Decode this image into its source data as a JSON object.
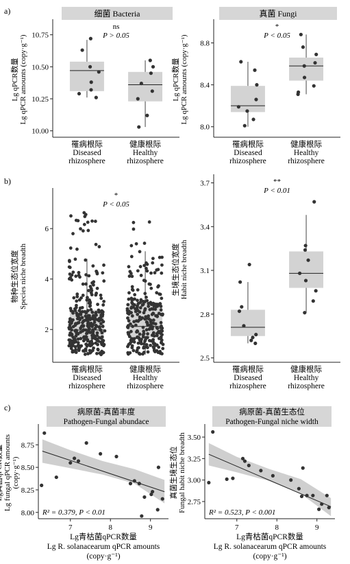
{
  "panel_labels": [
    "a)",
    "b)",
    "c)"
  ],
  "chart_data": [
    {
      "id": "a1",
      "type": "box",
      "title": "细菌 Bacteria",
      "ylabel": [
        "Lg qPCR数量",
        "Lg qPCR amounts (copy·g⁻¹)"
      ],
      "ylim": [
        9.95,
        10.85
      ],
      "yticks": [
        "10.00",
        "10.25",
        "10.50",
        "10.75"
      ],
      "ytick_values": [
        10.0,
        10.25,
        10.5,
        10.75
      ],
      "categories": [
        [
          "罹病根际",
          "Diseased",
          "rhizosphere"
        ],
        [
          "健康根际",
          "Healthy",
          "rhizosphere"
        ]
      ],
      "annotation": [
        "ns",
        "P > 0.05"
      ],
      "boxes": [
        {
          "q1": 10.31,
          "median": 10.47,
          "q3": 10.54,
          "wlow": 10.26,
          "whigh": 10.71,
          "points": [
            10.72,
            10.63,
            10.5,
            10.46,
            10.38,
            10.32,
            10.29,
            10.26
          ]
        },
        {
          "q1": 10.23,
          "median": 10.36,
          "q3": 10.46,
          "wlow": 10.03,
          "whigh": 10.55,
          "points": [
            10.55,
            10.5,
            10.45,
            10.37,
            10.31,
            10.25,
            10.12,
            10.03
          ]
        }
      ]
    },
    {
      "id": "a2",
      "type": "box",
      "title": "真菌 Fungi",
      "ylabel": [
        "Lg qPCR数量",
        "Lg qPCR amounts (copy·g⁻¹)"
      ],
      "ylim": [
        7.9,
        9.0
      ],
      "yticks": [
        "8.0",
        "8.4",
        "8.8"
      ],
      "ytick_values": [
        8.0,
        8.4,
        8.8
      ],
      "categories": [
        [
          "罹病根际",
          "Diseased",
          "rhizosphere"
        ],
        [
          "健康根际",
          "Healthy",
          "rhizosphere"
        ]
      ],
      "annotation": [
        "*",
        "P < 0.05"
      ],
      "boxes": [
        {
          "q1": 8.14,
          "median": 8.2,
          "q3": 8.39,
          "wlow": 8.0,
          "whigh": 8.62,
          "points": [
            8.62,
            8.54,
            8.4,
            8.26,
            8.19,
            8.15,
            8.07,
            8.01
          ]
        },
        {
          "q1": 8.44,
          "median": 8.58,
          "q3": 8.66,
          "wlow": 8.31,
          "whigh": 8.88,
          "points": [
            8.88,
            8.76,
            8.69,
            8.61,
            8.58,
            8.47,
            8.39,
            8.33,
            8.31
          ]
        }
      ]
    },
    {
      "id": "b1",
      "type": "box",
      "ylabel": [
        "物种生态位宽度",
        "Species niche breadth"
      ],
      "ylim": [
        0.7,
        7.5
      ],
      "yticks": [
        "2",
        "4",
        "6"
      ],
      "ytick_values": [
        2,
        4,
        6
      ],
      "categories": [
        [
          "罹病根际",
          "Diseased",
          "rhizosphere"
        ],
        [
          "健康根际",
          "Healthy",
          "rhizosphere"
        ]
      ],
      "annotation": [
        "*",
        "P < 0.05"
      ],
      "boxes": [
        {
          "q1": 1.6,
          "median": 1.98,
          "q3": 2.78,
          "wlow": 1.0,
          "whigh": 4.8,
          "n": 330,
          "max": 6.7
        },
        {
          "q1": 1.68,
          "median": 2.12,
          "q3": 3.05,
          "wlow": 1.0,
          "whigh": 5.1,
          "n": 270,
          "max": 6.3
        }
      ]
    },
    {
      "id": "b2",
      "type": "box",
      "ylabel": [
        "生境生态位宽度",
        "Habit niche breadth"
      ],
      "ylim": [
        2.47,
        3.74
      ],
      "yticks": [
        "2.5",
        "2.8",
        "3.1",
        "3.4",
        "3.7"
      ],
      "ytick_values": [
        2.5,
        2.8,
        3.1,
        3.4,
        3.7
      ],
      "categories": [
        [
          "罹病根际",
          "Diseased",
          "rhizosphere"
        ],
        [
          "健康根际",
          "Healthy",
          "rhizosphere"
        ]
      ],
      "annotation": [
        "**",
        "P < 0.01"
      ],
      "boxes": [
        {
          "q1": 2.65,
          "median": 2.71,
          "q3": 2.83,
          "wlow": 2.6,
          "whigh": 3.02,
          "points": [
            3.14,
            3.02,
            2.85,
            2.82,
            2.72,
            2.66,
            2.64,
            2.62,
            2.6
          ]
        },
        {
          "q1": 2.98,
          "median": 3.08,
          "q3": 3.23,
          "wlow": 2.81,
          "whigh": 3.48,
          "points": [
            3.57,
            3.27,
            3.24,
            3.17,
            3.08,
            3.03,
            2.96,
            2.89,
            2.81
          ]
        }
      ]
    },
    {
      "id": "c1",
      "type": "scatter",
      "title": [
        "病原菌-真菌丰度",
        "Pathogen-Fungal abundace"
      ],
      "ylabel": [
        "Lg真菌qPCR数量",
        "Lg fungal qPCR amounts",
        "(copy·g⁻¹)"
      ],
      "xlabel": [
        "Lg青枯菌qPCR数量",
        "Lg R. solanacearum qPCR amounts",
        "(copy·g⁻¹)"
      ],
      "xlim": [
        6.2,
        9.45
      ],
      "ylim": [
        7.93,
        8.95
      ],
      "xticks": [
        "7",
        "8",
        "9"
      ],
      "xtick_values": [
        7,
        8,
        9
      ],
      "yticks": [
        "8.00",
        "8.25",
        "8.50",
        "8.75"
      ],
      "ytick_values": [
        8.0,
        8.25,
        8.5,
        8.75
      ],
      "annotation": "R² = 0.379, P < 0.01",
      "x": [
        6.35,
        6.28,
        6.65,
        7.0,
        7.1,
        7.4,
        7.2,
        7.75,
        8.15,
        8.5,
        8.6,
        8.72,
        8.85,
        9.02,
        8.78,
        9.18,
        9.3,
        9.05,
        9.2
      ],
      "y": [
        8.88,
        8.3,
        8.39,
        8.55,
        8.6,
        8.77,
        8.57,
        8.65,
        8.62,
        8.32,
        8.35,
        8.32,
        8.17,
        8.2,
        7.96,
        8.03,
        8.15,
        8.23,
        8.5
      ],
      "fit": {
        "x": [
          6.3,
          9.35
        ],
        "y": [
          8.68,
          8.23
        ]
      },
      "band": {
        "x": [
          6.3,
          7.0,
          7.8,
          8.6,
          9.35
        ],
        "lo": [
          8.55,
          8.49,
          8.42,
          8.32,
          8.1
        ],
        "hi": [
          8.81,
          8.69,
          8.57,
          8.48,
          8.36
        ]
      }
    },
    {
      "id": "c2",
      "type": "scatter",
      "title": [
        "病原菌-真菌生态位",
        "Pathogen-Fungal niche width"
      ],
      "ylabel": [
        "真菌生境生态位",
        "Fungal habit niche breadth"
      ],
      "xlabel": [
        "Lg青枯菌qPCR数量",
        "Lg R. solanacearum qPCR amounts",
        "(copy·g⁻¹)"
      ],
      "xlim": [
        6.2,
        9.45
      ],
      "ylim": [
        2.55,
        3.62
      ],
      "xticks": [
        "7",
        "8",
        "9"
      ],
      "xtick_values": [
        7,
        8,
        9
      ],
      "yticks": [
        "2.75",
        "3.00",
        "3.25",
        "3.50"
      ],
      "ytick_values": [
        2.75,
        3.0,
        3.25,
        3.5
      ],
      "annotation": "R² = 0.523, P < 0.001",
      "x": [
        6.4,
        6.3,
        6.75,
        6.9,
        7.15,
        7.2,
        7.3,
        7.6,
        7.9,
        8.35,
        8.55,
        8.65,
        8.75,
        8.9,
        9.05,
        9.12,
        9.25,
        9.3,
        8.62
      ],
      "y": [
        3.56,
        2.97,
        3.01,
        3.02,
        3.25,
        3.22,
        3.17,
        3.11,
        3.05,
        3.0,
        2.9,
        3.14,
        2.82,
        2.82,
        2.66,
        2.72,
        2.82,
        2.68,
        2.81
      ],
      "fit": {
        "x": [
          6.3,
          9.35
        ],
        "y": [
          3.3,
          2.69
        ]
      },
      "band": {
        "x": [
          6.3,
          7.0,
          7.8,
          8.6,
          9.35
        ],
        "lo": [
          3.17,
          3.09,
          2.99,
          2.84,
          2.58
        ],
        "hi": [
          3.43,
          3.27,
          3.13,
          3.01,
          2.79
        ]
      }
    }
  ]
}
